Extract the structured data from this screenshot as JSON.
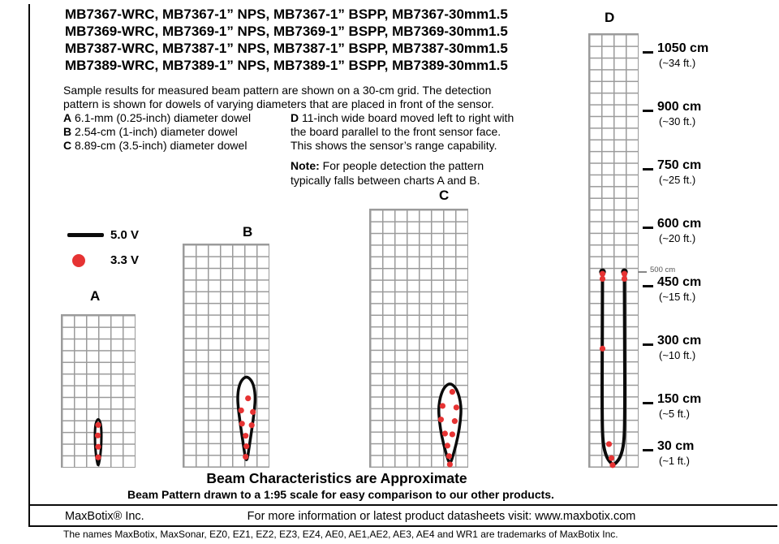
{
  "header": {
    "lines": [
      "MB7367-WRC, MB7367-1” NPS, MB7367-1” BSPP, MB7367-30mm1.5",
      "MB7369-WRC, MB7369-1” NPS, MB7369-1” BSPP, MB7369-30mm1.5",
      "MB7387-WRC, MB7387-1” NPS, MB7387-1” BSPP, MB7387-30mm1.5",
      "MB7389-WRC, MB7389-1” NPS, MB7389-1” BSPP, MB7389-30mm1.5"
    ]
  },
  "description": {
    "lines": [
      "Sample results for measured beam pattern are shown on a 30-cm grid. The detection",
      "pattern is shown for dowels of varying diameters that are placed in front of the sensor."
    ],
    "dowels": [
      {
        "key": "A",
        "text": "6.1-mm (0.25-inch) diameter dowel"
      },
      {
        "key": "B",
        "text": "2.54-cm (1-inch) diameter dowel"
      },
      {
        "key": "C",
        "text": "8.89-cm (3.5-inch) diameter dowel"
      }
    ],
    "board": {
      "key": "D",
      "line1": "11-inch wide board moved left to right with",
      "line2": "the board parallel to the front sensor face.",
      "line3": "This shows the sensor’s range capability."
    },
    "note": {
      "label": "Note:",
      "line1": "For people detection the pattern",
      "line2": "typically falls between charts A and B."
    }
  },
  "legend": {
    "line_label": "5.0 V",
    "dot_label": "3.3 V",
    "line_color": "#0b0b0b",
    "dot_color": "#e63333"
  },
  "charts": [
    {
      "label": "A",
      "cols": 6,
      "rows": 13,
      "grid_cell_cm": 30,
      "max_range_cm": 125,
      "beam": {
        "type": "closed",
        "axis_frac": 0.5,
        "stroke": 3,
        "points_cm": [
          [
            0,
            125
          ],
          [
            -6,
            114
          ],
          [
            -8,
            95
          ],
          [
            -8,
            64
          ],
          [
            -6,
            35
          ],
          [
            -3,
            14
          ],
          [
            0,
            2
          ],
          [
            3,
            14
          ],
          [
            6,
            35
          ],
          [
            8,
            64
          ],
          [
            8,
            95
          ],
          [
            6,
            114
          ]
        ]
      },
      "dots_cm": [
        [
          0,
          108
        ],
        [
          -1,
          81
        ],
        [
          0,
          52
        ],
        [
          0,
          25
        ]
      ]
    },
    {
      "label": "B",
      "cols": 7,
      "rows": 19,
      "grid_cell_cm": 30,
      "max_range_cm": 232,
      "beam": {
        "type": "closed",
        "axis_frac": 0.74,
        "stroke": 3.5,
        "points_cm": [
          [
            0,
            232
          ],
          [
            -12,
            222
          ],
          [
            -19,
            204
          ],
          [
            -22,
            178
          ],
          [
            -20,
            148
          ],
          [
            -15,
            108
          ],
          [
            -8,
            58
          ],
          [
            0,
            4
          ],
          [
            8,
            58
          ],
          [
            15,
            108
          ],
          [
            20,
            148
          ],
          [
            22,
            178
          ],
          [
            19,
            204
          ],
          [
            12,
            222
          ]
        ]
      },
      "dots_cm": [
        [
          4,
          175
        ],
        [
          -13,
          144
        ],
        [
          16,
          140
        ],
        [
          -11,
          110
        ],
        [
          13,
          106
        ],
        [
          -2,
          79
        ],
        [
          0,
          52
        ],
        [
          -2,
          25
        ]
      ]
    },
    {
      "label": "C",
      "cols": 8,
      "rows": 22,
      "grid_cell_cm": 30,
      "max_range_cm": 215,
      "beam": {
        "type": "closed",
        "axis_frac": 0.82,
        "stroke": 3.5,
        "points_cm": [
          [
            0,
            215
          ],
          [
            -14,
            204
          ],
          [
            -23,
            182
          ],
          [
            -28,
            152
          ],
          [
            -26,
            117
          ],
          [
            -20,
            77
          ],
          [
            -10,
            36
          ],
          [
            0,
            3
          ],
          [
            10,
            36
          ],
          [
            20,
            77
          ],
          [
            26,
            117
          ],
          [
            28,
            152
          ],
          [
            23,
            182
          ],
          [
            14,
            204
          ]
        ]
      },
      "dots_cm": [
        [
          6,
          192
        ],
        [
          -18,
          156
        ],
        [
          16,
          152
        ],
        [
          -22,
          121
        ],
        [
          12,
          117
        ],
        [
          -12,
          85
        ],
        [
          6,
          83
        ],
        [
          -6,
          54
        ],
        [
          -2,
          27
        ],
        [
          0,
          6
        ]
      ]
    },
    {
      "label": "D",
      "cols": 4,
      "rows": 37,
      "grid_cell_cm": 30,
      "max_range_cm": 500,
      "beam": {
        "type": "open",
        "axis_frac": 0.5,
        "stroke": 4,
        "paths_cm": [
          [
            [
              -27,
              500
            ],
            [
              -28,
              300
            ],
            [
              -28,
              120
            ],
            [
              -26,
              60
            ],
            [
              -18,
              26
            ],
            [
              -7,
              10
            ],
            [
              0,
              5
            ]
          ],
          [
            [
              27,
              500
            ],
            [
              28,
              300
            ],
            [
              28,
              120
            ],
            [
              26,
              60
            ],
            [
              18,
              26
            ],
            [
              7,
              10
            ],
            [
              0,
              5
            ]
          ]
        ]
      },
      "dots_cm": [
        [
          -27,
          495
        ],
        [
          27,
          495
        ],
        [
          -27,
          482
        ],
        [
          27,
          482
        ],
        [
          -27,
          303
        ],
        [
          -11,
          58
        ],
        [
          -5,
          22
        ],
        [
          -2,
          4
        ]
      ]
    }
  ],
  "scale": {
    "marks": [
      {
        "cm": 1050,
        "cm_label": "1050 cm",
        "ft_label": "(~34 ft.)"
      },
      {
        "cm": 900,
        "cm_label": "900 cm",
        "ft_label": "(~30 ft.)"
      },
      {
        "cm": 750,
        "cm_label": "750 cm",
        "ft_label": "(~25 ft.)"
      },
      {
        "cm": 600,
        "cm_label": "600 cm",
        "ft_label": "(~20 ft.)"
      },
      {
        "cm": 450,
        "cm_label": "450 cm",
        "ft_label": "(~15 ft.)"
      },
      {
        "cm": 300,
        "cm_label": "300 cm",
        "ft_label": "(~10 ft.)"
      },
      {
        "cm": 150,
        "cm_label": "150 cm",
        "ft_label": "(~5 ft.)"
      },
      {
        "cm": 30,
        "cm_label": "30 cm",
        "ft_label": "(~1 ft.)"
      }
    ],
    "small": {
      "label": "500 cm"
    }
  },
  "footer": {
    "approx": "Beam Characteristics are Approximate",
    "scale_note": "Beam Pattern drawn to a 1:95 scale for easy comparison to our other products.",
    "company": "MaxBotix® Inc.",
    "info": "For more information or latest product datasheets visit:  www.maxbotix.com",
    "trademarks": "The names MaxBotix, MaxSonar, EZ0, EZ1, EZ2, EZ3, EZ4, AE0, AE1,AE2, AE3, AE4 and WR1 are trademarks of MaxBotix Inc."
  }
}
